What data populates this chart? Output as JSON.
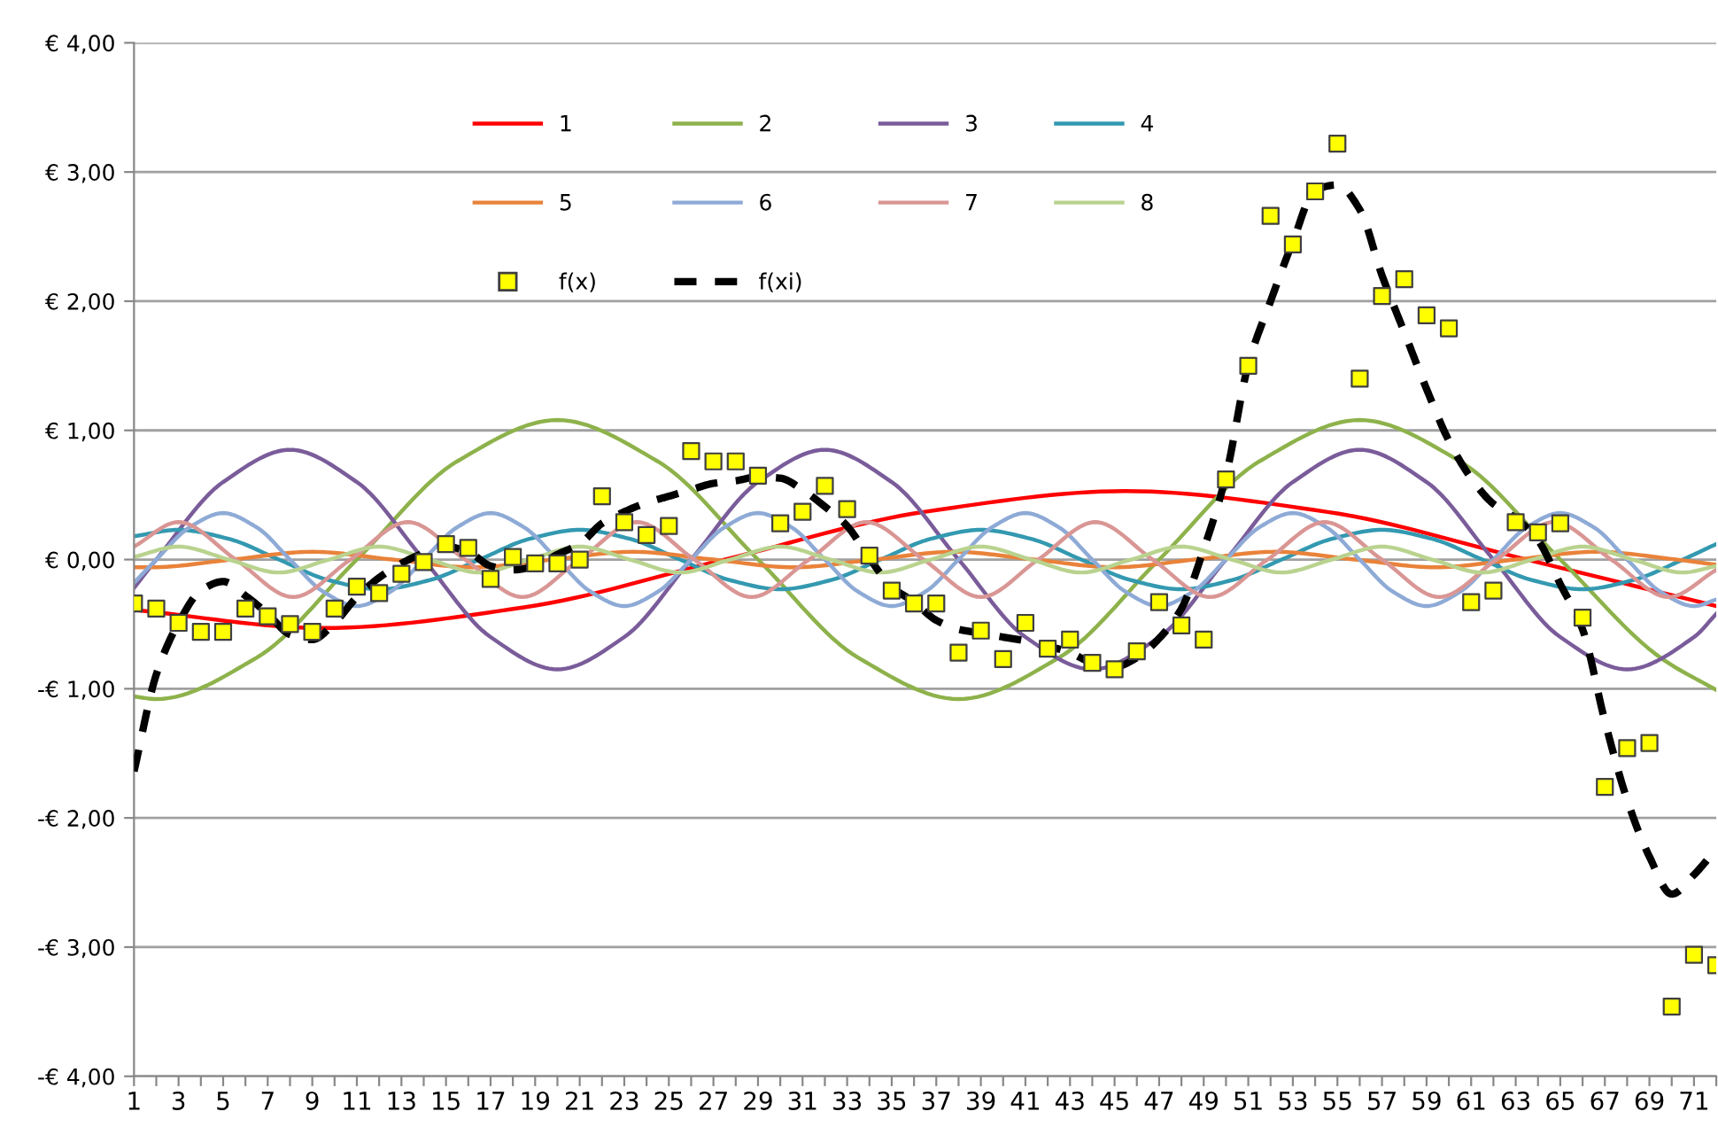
{
  "chart_data": {
    "type": "line",
    "x": [
      1,
      2,
      3,
      4,
      5,
      6,
      7,
      8,
      9,
      10,
      11,
      12,
      13,
      14,
      15,
      16,
      17,
      18,
      19,
      20,
      21,
      22,
      23,
      24,
      25,
      26,
      27,
      28,
      29,
      30,
      31,
      32,
      33,
      34,
      35,
      36,
      37,
      38,
      39,
      40,
      41,
      42,
      43,
      44,
      45,
      46,
      47,
      48,
      49,
      50,
      51,
      52,
      53,
      54,
      55,
      56,
      57,
      58,
      59,
      60,
      61,
      62,
      63,
      64,
      65,
      66,
      67,
      68,
      69,
      70,
      71,
      72
    ],
    "series": [
      {
        "name": "1",
        "color": "#ff0000",
        "x": [
          1,
          9.5,
          18.5,
          27.5,
          36.5,
          45.5,
          54.5,
          63.5,
          72
        ],
        "values": [
          -0.39,
          -0.53,
          -0.37,
          0,
          0.37,
          0.53,
          0.37,
          0,
          -0.36
        ]
      },
      {
        "name": "2",
        "color": "#8eb24b",
        "x": [
          1,
          2,
          6.5,
          11,
          15.5,
          20,
          24.5,
          29,
          33.5,
          38,
          42.5,
          47,
          51.5,
          56,
          60.5,
          65,
          69.5,
          72
        ],
        "values": [
          -1.06,
          -1.08,
          -0.76,
          0,
          0.76,
          1.08,
          0.76,
          0,
          -0.76,
          -1.08,
          -0.76,
          0,
          0.76,
          1.08,
          0.76,
          0,
          -0.76,
          -1.01
        ]
      },
      {
        "name": "3",
        "color": "#7a5c9a",
        "x": [
          1,
          2,
          5,
          8,
          11,
          14,
          17,
          20,
          23,
          26,
          29,
          32,
          35,
          38,
          41,
          44,
          47,
          50,
          53,
          56,
          59,
          62,
          65,
          68,
          71,
          72
        ],
        "values": [
          -0.22,
          0,
          0.6,
          0.85,
          0.6,
          0,
          -0.6,
          -0.85,
          -0.6,
          0,
          0.6,
          0.85,
          0.6,
          0,
          -0.6,
          -0.85,
          -0.6,
          0,
          0.6,
          0.85,
          0.6,
          0,
          -0.6,
          -0.85,
          -0.6,
          -0.42
        ]
      },
      {
        "name": "4",
        "color": "#3399b0",
        "x": [
          1,
          3,
          5.25,
          7.5,
          9.75,
          12,
          14.25,
          16.5,
          18.75,
          21,
          23.25,
          25.5,
          27.75,
          30,
          32.25,
          34.5,
          36.75,
          39,
          41.25,
          43.5,
          45.75,
          48,
          50.25,
          52.5,
          54.75,
          57,
          59.25,
          61.5,
          63.75,
          66,
          68.25,
          70.5,
          72
        ],
        "values": [
          0.18,
          0.23,
          0.16,
          0,
          -0.16,
          -0.23,
          -0.16,
          0,
          0.16,
          0.23,
          0.16,
          0,
          -0.16,
          -0.23,
          -0.16,
          0,
          0.16,
          0.23,
          0.16,
          0,
          -0.16,
          -0.23,
          -0.16,
          0,
          0.16,
          0.23,
          0.16,
          0,
          -0.16,
          -0.23,
          -0.16,
          0,
          0.12
        ]
      },
      {
        "name": "5",
        "color": "#e9823a",
        "x": [
          1,
          1.8,
          5.4,
          9,
          12.6,
          16.2,
          19.8,
          23.4,
          27,
          30.6,
          34.2,
          37.8,
          41.4,
          45,
          48.6,
          52.2,
          55.8,
          59.4,
          63,
          66.6,
          70.2,
          72
        ],
        "values": [
          -0.06,
          -0.06,
          0,
          0.06,
          0,
          -0.06,
          0,
          0.06,
          0,
          -0.06,
          0,
          0.06,
          0,
          -0.06,
          0,
          0.06,
          0,
          -0.06,
          0,
          0.06,
          0,
          -0.04
        ]
      },
      {
        "name": "6",
        "color": "#8eaad6",
        "x": [
          1,
          2,
          3.5,
          5,
          6.5,
          8,
          9.5,
          11,
          12.5,
          14,
          15.5,
          17,
          18.5,
          20,
          21.5,
          23,
          24.5,
          26,
          27.5,
          29,
          30.5,
          32,
          33.5,
          35,
          36.5,
          38,
          39.5,
          41,
          42.5,
          44,
          45.5,
          47,
          48.5,
          50,
          51.5,
          53,
          54.5,
          56,
          57.5,
          59,
          60.5,
          62,
          63.5,
          65,
          66.5,
          68,
          69.5,
          71,
          72
        ],
        "values": [
          -0.18,
          0,
          0.25,
          0.36,
          0.25,
          0,
          -0.25,
          -0.36,
          -0.25,
          0,
          0.25,
          0.36,
          0.25,
          0,
          -0.25,
          -0.36,
          -0.25,
          0,
          0.25,
          0.36,
          0.25,
          0,
          -0.25,
          -0.36,
          -0.25,
          0,
          0.25,
          0.36,
          0.25,
          0,
          -0.25,
          -0.36,
          -0.25,
          0,
          0.25,
          0.36,
          0.25,
          0,
          -0.25,
          -0.36,
          -0.25,
          0,
          0.25,
          0.36,
          0.25,
          0,
          -0.25,
          -0.36,
          -0.31
        ]
      },
      {
        "name": "7",
        "color": "#d99694",
        "x": [
          1,
          3,
          5.57,
          8.14,
          10.71,
          13.29,
          15.86,
          18.43,
          21,
          23.57,
          26.14,
          28.71,
          31.29,
          33.86,
          36.43,
          39,
          41.57,
          44.14,
          46.71,
          49.29,
          51.86,
          54.43,
          57,
          59.57,
          62.14,
          64.71,
          67.29,
          69.86,
          72
        ],
        "values": [
          0.1,
          0.29,
          0,
          -0.29,
          0,
          0.29,
          0,
          -0.29,
          0,
          0.29,
          0,
          -0.29,
          0,
          0.29,
          0,
          -0.29,
          0,
          0.29,
          0,
          -0.29,
          0,
          0.29,
          0,
          -0.29,
          0,
          0.29,
          0,
          -0.29,
          -0.08
        ]
      },
      {
        "name": "8",
        "color": "#b9d38f",
        "x": [
          1,
          3,
          5.25,
          7.5,
          9.75,
          12,
          14.25,
          16.5,
          18.75,
          21,
          23.25,
          25.5,
          27.75,
          30,
          32.25,
          34.5,
          36.75,
          39,
          41.25,
          43.5,
          45.75,
          48,
          50.25,
          52.5,
          54.75,
          57,
          59.25,
          61.5,
          63.75,
          66,
          68.25,
          70.5,
          72
        ],
        "values": [
          0.02,
          0.1,
          0,
          -0.1,
          0,
          0.1,
          0,
          -0.1,
          0,
          0.1,
          0,
          -0.1,
          0,
          0.1,
          0,
          -0.1,
          0,
          0.1,
          0,
          -0.1,
          0,
          0.1,
          0,
          -0.1,
          0,
          0.1,
          0,
          -0.1,
          0,
          0.1,
          0,
          -0.1,
          -0.05
        ]
      },
      {
        "name": "f(x)",
        "color": "#ffff00",
        "type": "scatter",
        "marker": "square",
        "values": [
          -0.34,
          -0.38,
          -0.49,
          -0.56,
          -0.56,
          -0.38,
          -0.44,
          -0.5,
          -0.56,
          -0.38,
          -0.21,
          -0.26,
          -0.11,
          -0.02,
          0.12,
          0.09,
          -0.15,
          0.02,
          -0.03,
          -0.03,
          0.0,
          0.49,
          0.29,
          0.19,
          0.26,
          0.84,
          0.76,
          0.76,
          0.65,
          0.28,
          0.37,
          0.57,
          0.39,
          0.03,
          -0.24,
          -0.34,
          -0.34,
          -0.72,
          -0.55,
          -0.77,
          -0.49,
          -0.69,
          -0.62,
          -0.8,
          -0.85,
          -0.71,
          -0.33,
          -0.51,
          -0.62,
          0.62,
          1.5,
          2.66,
          2.44,
          2.85,
          3.22,
          1.4,
          2.04,
          2.17,
          1.89,
          1.79,
          -0.33,
          -0.24,
          0.29,
          0.21,
          0.28,
          -0.45,
          -1.76,
          -1.46,
          -1.42,
          -3.46,
          -3.06,
          -3.14
        ]
      },
      {
        "name": "f(xi)",
        "color": "#000000",
        "line_style": "dashed",
        "values": [
          -1.64,
          -0.89,
          -0.49,
          -0.24,
          -0.17,
          -0.28,
          -0.42,
          -0.58,
          -0.62,
          -0.49,
          -0.29,
          -0.14,
          -0.03,
          0.05,
          0.1,
          0.06,
          -0.05,
          -0.08,
          -0.05,
          0.04,
          0.12,
          0.28,
          0.37,
          0.44,
          0.49,
          0.54,
          0.59,
          0.61,
          0.64,
          0.63,
          0.54,
          0.41,
          0.26,
          0.01,
          -0.21,
          -0.33,
          -0.47,
          -0.54,
          -0.57,
          -0.6,
          -0.63,
          -0.67,
          -0.72,
          -0.8,
          -0.83,
          -0.76,
          -0.61,
          -0.38,
          0.08,
          0.65,
          1.51,
          2.0,
          2.46,
          2.86,
          2.9,
          2.71,
          2.2,
          1.76,
          1.32,
          0.92,
          0.63,
          0.43,
          0.32,
          0.15,
          -0.19,
          -0.54,
          -1.25,
          -1.86,
          -2.3,
          -2.59,
          -2.44,
          -2.24
        ]
      }
    ],
    "xlim": [
      1,
      72
    ],
    "xticks": [
      1,
      {
        "value": 2,
        "label": null
      },
      3,
      {
        "value": 4,
        "label": null
      },
      5,
      {
        "value": 6,
        "label": null
      },
      7,
      {
        "value": 8,
        "label": null
      },
      9,
      {
        "value": 10,
        "label": null
      },
      11,
      {
        "value": 12,
        "label": null
      },
      13,
      {
        "value": 14,
        "label": null
      },
      15,
      {
        "value": 16,
        "label": null
      },
      17,
      {
        "value": 18,
        "label": null
      },
      19,
      {
        "value": 20,
        "label": null
      },
      21,
      {
        "value": 22,
        "label": null
      },
      23,
      {
        "value": 24,
        "label": null
      },
      25,
      {
        "value": 26,
        "label": null
      },
      27,
      {
        "value": 28,
        "label": null
      },
      29,
      {
        "value": 30,
        "label": null
      },
      31,
      {
        "value": 32,
        "label": null
      },
      33,
      {
        "value": 34,
        "label": null
      },
      35,
      {
        "value": 36,
        "label": null
      },
      37,
      {
        "value": 38,
        "label": null
      },
      39,
      {
        "value": 40,
        "label": null
      },
      41,
      {
        "value": 42,
        "label": null
      },
      43,
      {
        "value": 44,
        "label": null
      },
      45,
      {
        "value": 46,
        "label": null
      },
      47,
      {
        "value": 48,
        "label": null
      },
      49,
      {
        "value": 50,
        "label": null
      },
      51,
      {
        "value": 52,
        "label": null
      },
      53,
      {
        "value": 54,
        "label": null
      },
      55,
      {
        "value": 56,
        "label": null
      },
      57,
      {
        "value": 58,
        "label": null
      },
      59,
      {
        "value": 60,
        "label": null
      },
      61,
      {
        "value": 62,
        "label": null
      },
      63,
      {
        "value": 64,
        "label": null
      },
      65,
      {
        "value": 66,
        "label": null
      },
      67,
      {
        "value": 68,
        "label": null
      },
      69,
      {
        "value": 70,
        "label": null
      },
      71,
      {
        "value": 72,
        "label": null
      }
    ],
    "ylim": [
      -4,
      4
    ],
    "yticks": [
      {
        "value": -4,
        "label": "-€ 4,00"
      },
      {
        "value": -3,
        "label": "-€ 3,00"
      },
      {
        "value": -2,
        "label": "-€ 2,00"
      },
      {
        "value": -1,
        "label": "-€ 1,00"
      },
      {
        "value": 0,
        "label": "€ 0,00"
      },
      {
        "value": 1,
        "label": "€ 1,00"
      },
      {
        "value": 2,
        "label": "€ 2,00"
      },
      {
        "value": 3,
        "label": "€ 3,00"
      },
      {
        "value": 4,
        "label": "€ 4,00"
      }
    ],
    "grid": "y",
    "legend": "top"
  }
}
